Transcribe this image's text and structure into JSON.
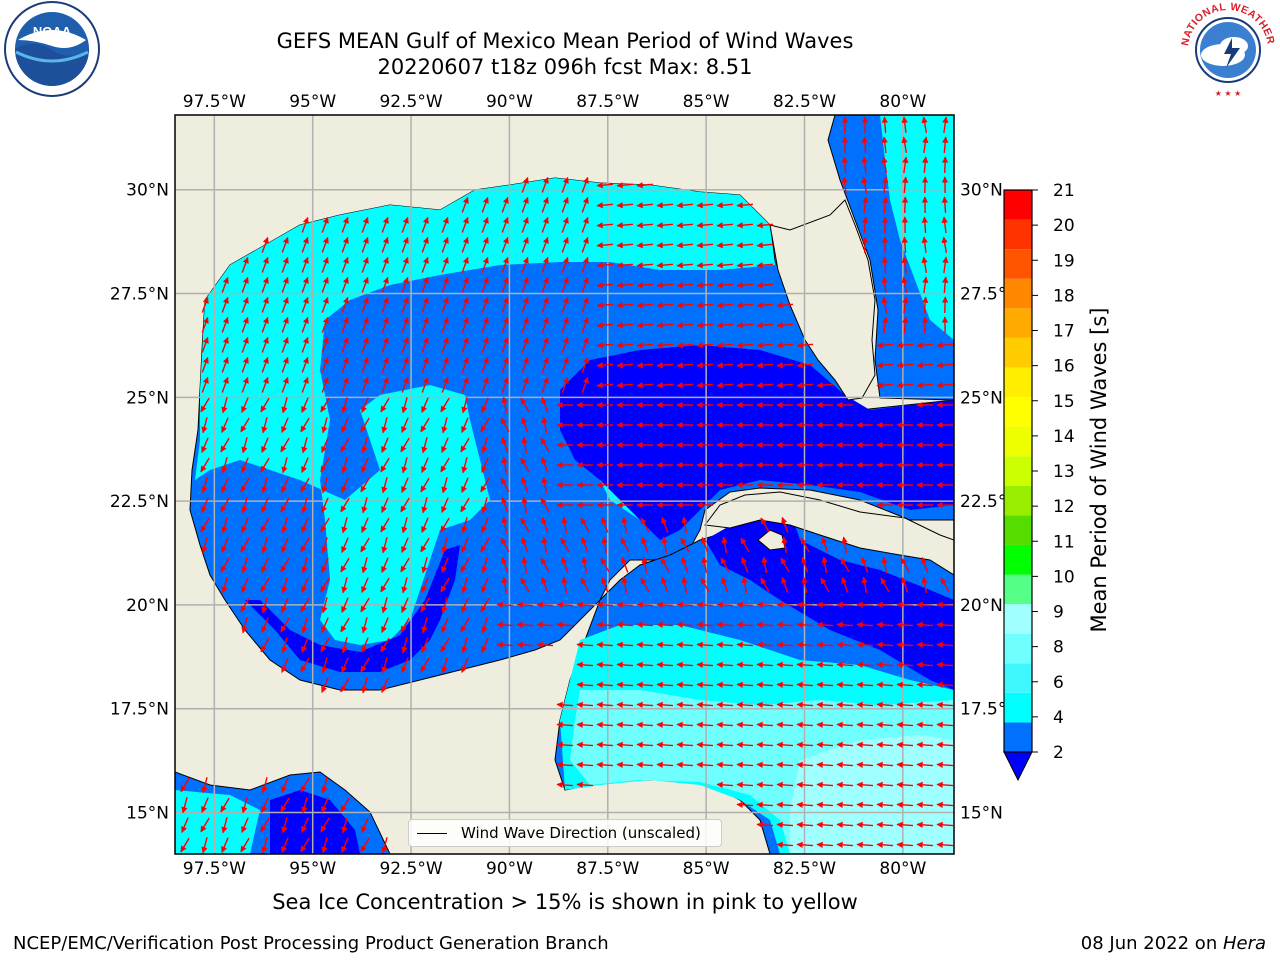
{
  "title": {
    "line1": "GEFS MEAN Gulf of Mexico Mean Period of Wind Waves",
    "line2": "20220607 t18z 096h fcst   Max: 8.51"
  },
  "map": {
    "lon_range": [
      -98.5,
      -78.7
    ],
    "lat_range": [
      14.0,
      31.8
    ],
    "lon_ticks": [
      {
        "value": -97.5,
        "label": "97.5°W"
      },
      {
        "value": -95,
        "label": "95°W"
      },
      {
        "value": -92.5,
        "label": "92.5°W"
      },
      {
        "value": -90,
        "label": "90°W"
      },
      {
        "value": -87.5,
        "label": "87.5°W"
      },
      {
        "value": -85,
        "label": "85°W"
      },
      {
        "value": -82.5,
        "label": "82.5°W"
      },
      {
        "value": -80,
        "label": "80°W"
      }
    ],
    "lat_ticks": [
      {
        "value": 30,
        "label": "30°N"
      },
      {
        "value": 27.5,
        "label": "27.5°N"
      },
      {
        "value": 25,
        "label": "25°N"
      },
      {
        "value": 22.5,
        "label": "22.5°N"
      },
      {
        "value": 20,
        "label": "20°N"
      },
      {
        "value": 17.5,
        "label": "17.5°N"
      },
      {
        "value": 15,
        "label": "15°N"
      }
    ],
    "land_color": "#efedde",
    "grid_color": "#b0b0b0",
    "arrow_color": "#ff0000"
  },
  "colorbar": {
    "label": "Mean Period of Wind Waves [s]",
    "levels": [
      2,
      3,
      4,
      5,
      6,
      7,
      8,
      9,
      10,
      11,
      12,
      13,
      14,
      15,
      16,
      17,
      18,
      19,
      20,
      21
    ],
    "tick_labels": [
      "2",
      "4",
      "6",
      "8",
      "9",
      "10",
      "11",
      "12",
      "13",
      "14",
      "15",
      "16",
      "17",
      "18",
      "19",
      "20",
      "21"
    ],
    "colors": [
      "#0070ff",
      "#00ffff",
      "#3ff8ff",
      "#70ffff",
      "#a0ffff",
      "#55ff88",
      "#00ff00",
      "#55dd00",
      "#99ee00",
      "#ccff00",
      "#eeff00",
      "#ffff00",
      "#ffee00",
      "#ffcc00",
      "#ffaa00",
      "#ff8800",
      "#ff5500",
      "#ff3300",
      "#ff0000"
    ],
    "extend_color": "#0000ff"
  },
  "legend": {
    "label": "Wind Wave Direction (unscaled)"
  },
  "caption": "Sea Ice Concentration > 15% is shown in pink to yellow",
  "footer": {
    "left": "NCEP/EMC/Verification Post Processing Product Generation Branch",
    "date": "08 Jun 2022 on ",
    "machine": "Hera"
  },
  "logos": {
    "noaa": "NOAA",
    "nws": "NATIONAL WEATHER SERVICE"
  }
}
